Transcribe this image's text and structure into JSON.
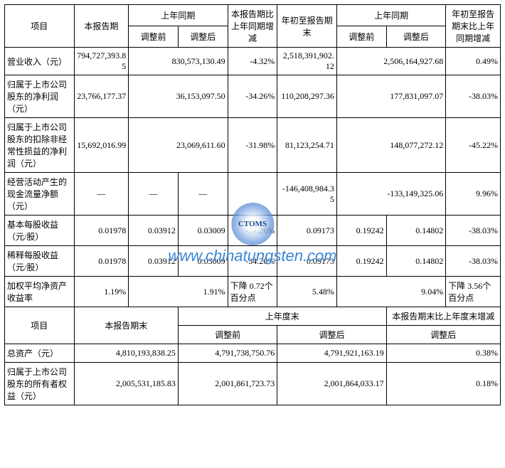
{
  "headers": {
    "item": "项目",
    "current_period": "本报告期",
    "prior_period": "上年同期",
    "change_vs_prior": "本报告期比上年同期增减",
    "ytd_end": "年初至报告期末",
    "prior_ytd": "上年同期",
    "ytd_change": "年初至报告期末比上年同期增减",
    "before_adj": "调整前",
    "after_adj": "调整后",
    "after_adj2": "调整后",
    "current_period_end": "本报告期末",
    "prior_year_end": "上年度末",
    "period_vs_prior_year": "本报告期末比上年度末增减"
  },
  "rows": [
    {
      "label": "营业收入（元）",
      "current": "794,727,393.85",
      "prior_merged": "830,573,130.49",
      "change": "-4.32%",
      "ytd": "2,518,391,902.12",
      "prior_ytd_merged": "2,506,164,927.68",
      "ytd_change": "0.49%"
    },
    {
      "label": "归属于上市公司股东的净利润（元）",
      "current": "23,766,177.37",
      "prior_merged": "36,153,097.50",
      "change": "-34.26%",
      "ytd": "110,208,297.36",
      "prior_ytd_merged": "177,831,097.07",
      "ytd_change": "-38.03%"
    },
    {
      "label": "归属于上市公司股东的扣除非经常性损益的净利润（元）",
      "current": "15,692,016.99",
      "prior_merged": "23,069,611.60",
      "change": "-31.98%",
      "ytd": "81,123,254.71",
      "prior_ytd_merged": "148,077,272.12",
      "ytd_change": "-45.22%"
    },
    {
      "label": "经营活动产生的现金流量净额（元）",
      "current": "—",
      "prior_before": "—",
      "prior_after": "—",
      "change": "",
      "ytd": "-146,408,984.35",
      "prior_ytd_merged": "-133,149,325.06",
      "ytd_change": "9.96%"
    },
    {
      "label": "基本每股收益（元/股）",
      "current": "0.01978",
      "prior_before": "0.03912",
      "prior_after": "0.03009",
      "change": "-34.26%",
      "ytd": "0.09173",
      "prior_ytd_before": "0.19242",
      "prior_ytd_after": "0.14802",
      "ytd_change": "-38.03%"
    },
    {
      "label": "稀释每股收益（元/股）",
      "current": "0.01978",
      "prior_before": "0.03912",
      "prior_after": "0.03009",
      "change": "-34.26%",
      "ytd": "0.09173",
      "prior_ytd_before": "0.19242",
      "prior_ytd_after": "0.14802",
      "ytd_change": "-38.03%"
    },
    {
      "label": "加权平均净资产收益率",
      "current": "1.19%",
      "prior_merged": "1.91%",
      "change": "下降 0.72个百分点",
      "ytd": "5.48%",
      "prior_ytd_merged": "9.04%",
      "ytd_change": "下降 3.56个百分点"
    }
  ],
  "rows2": [
    {
      "label": "总资产（元）",
      "current_end": "4,810,193,838.25",
      "prior_before": "4,791,738,750.76",
      "prior_after": "4,791,921,163.19",
      "change": "0.38%"
    },
    {
      "label": "归属于上市公司股东的所有者权益（元）",
      "current_end": "2,005,531,185.83",
      "prior_before": "2,001,861,723.73",
      "prior_after": "2,001,864,033.17",
      "change": "0.18%"
    }
  ],
  "watermark": {
    "inner": "CTOMS",
    "url": "www.chinatungsten.com"
  },
  "styling": {
    "border_color": "#000000",
    "background": "#ffffff",
    "font_family": "SimSun",
    "font_size_pt": 9,
    "watermark_color": "#3a84d4"
  }
}
